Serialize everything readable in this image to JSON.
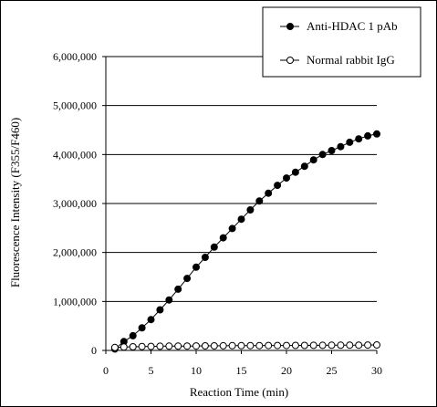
{
  "chart_data": {
    "type": "line",
    "title": "",
    "xlabel": "Reaction Time (min)",
    "ylabel": "Fluorescence Intensity (F355/F460)",
    "xlim": [
      0,
      30
    ],
    "ylim": [
      0,
      6000000
    ],
    "x_ticks": [
      0,
      5,
      10,
      15,
      20,
      25,
      30
    ],
    "x_tick_labels": [
      "0",
      "5",
      "10",
      "15",
      "20",
      "25",
      "30"
    ],
    "y_ticks": [
      0,
      1000000,
      2000000,
      3000000,
      4000000,
      5000000,
      6000000
    ],
    "y_tick_labels": [
      "0",
      "1,000,000",
      "2,000,000",
      "3,000,000",
      "4,000,000",
      "5,000,000",
      "6,000,000"
    ],
    "grid": "horizontal major",
    "legend_position": "top-right",
    "series": [
      {
        "name": "Anti-HDAC 1 pAb",
        "marker": "filled-circle",
        "color": "#000000",
        "x": [
          1,
          2,
          3,
          4,
          5,
          6,
          7,
          8,
          9,
          10,
          11,
          12,
          13,
          14,
          15,
          16,
          17,
          18,
          19,
          20,
          21,
          22,
          23,
          24,
          25,
          26,
          27,
          28,
          29,
          30
        ],
        "values": [
          30000,
          180000,
          300000,
          460000,
          630000,
          830000,
          1030000,
          1250000,
          1470000,
          1700000,
          1900000,
          2110000,
          2300000,
          2490000,
          2680000,
          2870000,
          3050000,
          3210000,
          3370000,
          3520000,
          3640000,
          3760000,
          3890000,
          4000000,
          4080000,
          4160000,
          4250000,
          4320000,
          4380000,
          4420000
        ]
      },
      {
        "name": "Normal rabbit IgG",
        "marker": "open-circle",
        "color": "#000000",
        "x": [
          1,
          2,
          3,
          4,
          5,
          6,
          7,
          8,
          9,
          10,
          11,
          12,
          13,
          14,
          15,
          16,
          17,
          18,
          19,
          20,
          21,
          22,
          23,
          24,
          25,
          26,
          27,
          28,
          29,
          30
        ],
        "values": [
          60000,
          70000,
          75000,
          80000,
          82000,
          85000,
          87000,
          88000,
          90000,
          92000,
          93000,
          94000,
          95000,
          96000,
          97000,
          98000,
          99000,
          100000,
          100000,
          101000,
          102000,
          103000,
          104000,
          105000,
          106000,
          107000,
          108000,
          109000,
          110000,
          111000
        ]
      }
    ]
  }
}
